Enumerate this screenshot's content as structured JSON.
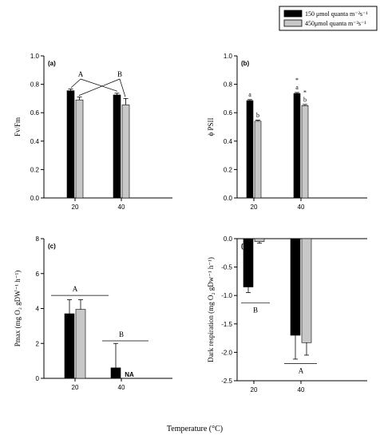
{
  "legend": {
    "items": [
      {
        "label": "150 μmol quanta m⁻²s⁻¹",
        "color": "#000000"
      },
      {
        "label": "450μmol quanta m⁻²s⁻¹",
        "color": "#c8c8c8"
      }
    ]
  },
  "xlabel": "Temperature (°C)",
  "chart_data": [
    {
      "type": "bar",
      "panel": "(a)",
      "categories": [
        "20",
        "40"
      ],
      "ylabel": "Fv/Fm",
      "ylim": [
        0.0,
        1.0
      ],
      "yticks": [
        "0.0",
        "0.2",
        "0.4",
        "0.6",
        "0.8",
        "1.0"
      ],
      "series": [
        {
          "name": "150 μmol quanta m⁻²s⁻¹",
          "values": [
            0.755,
            0.725
          ],
          "errors": [
            0.012,
            0.012
          ]
        },
        {
          "name": "450μmol quanta m⁻²s⁻¹",
          "values": [
            0.69,
            0.655
          ],
          "errors": [
            0.02,
            0.045
          ]
        }
      ],
      "annotations": [
        "A",
        "B"
      ]
    },
    {
      "type": "bar",
      "panel": "(b)",
      "categories": [
        "20",
        "40"
      ],
      "ylabel": "ϕ PSII",
      "ylim": [
        0.0,
        1.0
      ],
      "yticks": [
        "0.0",
        "0.2",
        "0.4",
        "0.6",
        "0.8",
        "1.0"
      ],
      "series": [
        {
          "name": "150 μmol quanta m⁻²s⁻¹",
          "values": [
            0.685,
            0.735
          ],
          "errors": [
            0.007,
            0.007
          ]
        },
        {
          "name": "450μmol quanta m⁻²s⁻¹",
          "values": [
            0.54,
            0.65
          ],
          "errors": [
            0.008,
            0.008
          ]
        }
      ],
      "annotations": [
        "a",
        "b",
        "*",
        "a",
        "*",
        "b"
      ]
    },
    {
      "type": "bar",
      "panel": "(c)",
      "categories": [
        "20",
        "40"
      ],
      "ylabel": "Pmax (mg O₂ gDW⁻¹ h⁻¹)",
      "ylim": [
        0,
        8
      ],
      "yticks": [
        "0",
        "2",
        "4",
        "6",
        "8"
      ],
      "series": [
        {
          "name": "150 μmol quanta m⁻²s⁻¹",
          "values": [
            3.7,
            0.6
          ],
          "errors": [
            0.8,
            1.4
          ]
        },
        {
          "name": "450μmol quanta m⁻²s⁻¹",
          "values": [
            3.95,
            null
          ],
          "errors": [
            0.55,
            null
          ]
        }
      ],
      "annotations": [
        "A",
        "B",
        "NA"
      ]
    },
    {
      "type": "bar",
      "panel": "(d)",
      "categories": [
        "20",
        "40"
      ],
      "ylabel": "Dark respiration (mg O₂ gDw⁻¹ h⁻¹)",
      "ylim": [
        -2.5,
        0.0
      ],
      "yticks": [
        "0.0",
        "-0.5",
        "-1.0",
        "-1.5",
        "-2.0",
        "-2.5"
      ],
      "series": [
        {
          "name": "150 μmol quanta m⁻²s⁻¹",
          "values": [
            -0.85,
            -1.7
          ],
          "errors": [
            0.1,
            0.42
          ]
        },
        {
          "name": "450μmol quanta m⁻²s⁻¹",
          "values": [
            -0.05,
            -1.83
          ],
          "errors": [
            0.03,
            0.22
          ]
        }
      ],
      "annotations": [
        "B",
        "A"
      ]
    }
  ]
}
